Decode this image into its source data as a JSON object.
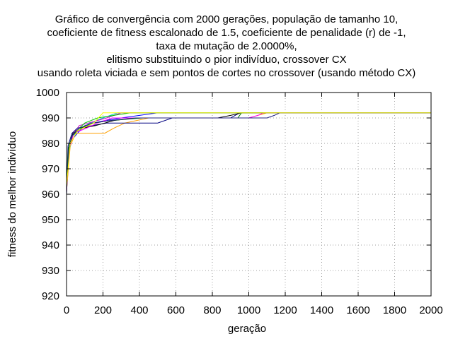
{
  "chart_data": {
    "type": "line",
    "title_lines": [
      "Gráfico de convergência com 2000 gerações, população de tamanho 10,",
      "coeficiente de fitness escalonado de 1.5, coeficiente de penalidade (r) de -1,",
      "taxa de mutação de 2.0000%,",
      "elitismo substituindo o pior indivíduo, crossover CX",
      "usando roleta viciada e sem pontos de cortes no crossover (usando método CX)"
    ],
    "xlabel": "geração",
    "ylabel": "fitness do melhor indivíduo",
    "xlim": [
      0,
      2000
    ],
    "ylim": [
      920,
      1000
    ],
    "xticks": [
      0,
      200,
      400,
      600,
      800,
      1000,
      1200,
      1400,
      1600,
      1800,
      2000
    ],
    "yticks": [
      920,
      930,
      940,
      950,
      960,
      970,
      980,
      990,
      1000
    ],
    "grid": true,
    "legend": "none",
    "series": [
      {
        "color": "#0000ff",
        "points": [
          [
            0,
            960
          ],
          [
            10,
            975
          ],
          [
            25,
            981
          ],
          [
            60,
            984
          ],
          [
            100,
            987
          ],
          [
            150,
            988
          ],
          [
            210,
            989
          ],
          [
            300,
            990
          ],
          [
            500,
            992
          ],
          [
            2000,
            992
          ]
        ]
      },
      {
        "color": "#00c8c8",
        "points": [
          [
            0,
            961
          ],
          [
            15,
            977
          ],
          [
            35,
            983
          ],
          [
            80,
            986
          ],
          [
            130,
            988
          ],
          [
            200,
            990
          ],
          [
            280,
            992
          ],
          [
            2000,
            992
          ]
        ]
      },
      {
        "color": "#c800c8",
        "points": [
          [
            0,
            962
          ],
          [
            10,
            976
          ],
          [
            30,
            983
          ],
          [
            70,
            987
          ],
          [
            120,
            988
          ],
          [
            220,
            990
          ],
          [
            300,
            992
          ],
          [
            2000,
            992
          ]
        ]
      },
      {
        "color": "#00c800",
        "points": [
          [
            0,
            963
          ],
          [
            12,
            978
          ],
          [
            40,
            984
          ],
          [
            100,
            988
          ],
          [
            170,
            990
          ],
          [
            260,
            991
          ],
          [
            350,
            992
          ],
          [
            2000,
            992
          ]
        ]
      },
      {
        "color": "#ffa000",
        "points": [
          [
            0,
            961
          ],
          [
            20,
            979
          ],
          [
            50,
            984
          ],
          [
            210,
            984
          ],
          [
            260,
            986
          ],
          [
            320,
            988
          ],
          [
            450,
            990
          ],
          [
            1000,
            990
          ],
          [
            1100,
            992
          ],
          [
            2000,
            992
          ]
        ]
      },
      {
        "color": "#000080",
        "points": [
          [
            0,
            962
          ],
          [
            8,
            979
          ],
          [
            30,
            984
          ],
          [
            60,
            986
          ],
          [
            140,
            987
          ],
          [
            220,
            988
          ],
          [
            500,
            988
          ],
          [
            580,
            990
          ],
          [
            830,
            990
          ],
          [
            900,
            990
          ],
          [
            950,
            992
          ],
          [
            2000,
            992
          ]
        ]
      },
      {
        "color": "#000000",
        "points": [
          [
            0,
            960
          ],
          [
            10,
            977
          ],
          [
            35,
            984
          ],
          [
            90,
            986
          ],
          [
            160,
            987
          ],
          [
            260,
            989
          ],
          [
            380,
            990
          ],
          [
            830,
            990
          ],
          [
            900,
            991
          ],
          [
            960,
            992
          ],
          [
            2000,
            992
          ]
        ]
      },
      {
        "color": "#ff00ff",
        "points": [
          [
            0,
            961
          ],
          [
            15,
            978
          ],
          [
            40,
            984
          ],
          [
            110,
            986
          ],
          [
            170,
            988
          ],
          [
            250,
            990
          ],
          [
            520,
            990
          ],
          [
            1000,
            990
          ],
          [
            1050,
            991
          ],
          [
            1080,
            992
          ],
          [
            2000,
            992
          ]
        ]
      },
      {
        "color": "#008000",
        "points": [
          [
            0,
            962
          ],
          [
            10,
            978
          ],
          [
            30,
            983
          ],
          [
            80,
            986
          ],
          [
            150,
            988
          ],
          [
            240,
            989
          ],
          [
            420,
            990
          ],
          [
            940,
            990
          ],
          [
            960,
            992
          ],
          [
            2000,
            992
          ]
        ]
      },
      {
        "color": "#202080",
        "points": [
          [
            0,
            961
          ],
          [
            12,
            977
          ],
          [
            30,
            983
          ],
          [
            70,
            986
          ],
          [
            140,
            988
          ],
          [
            240,
            989
          ],
          [
            380,
            990
          ],
          [
            1000,
            990
          ],
          [
            1100,
            990
          ],
          [
            1140,
            991
          ],
          [
            1170,
            992
          ],
          [
            2000,
            992
          ]
        ]
      },
      {
        "color": "#ffff00",
        "points": [
          [
            0,
            963
          ],
          [
            20,
            980
          ],
          [
            60,
            985
          ],
          [
            150,
            988
          ],
          [
            200,
            992
          ],
          [
            2000,
            992
          ]
        ]
      }
    ]
  }
}
